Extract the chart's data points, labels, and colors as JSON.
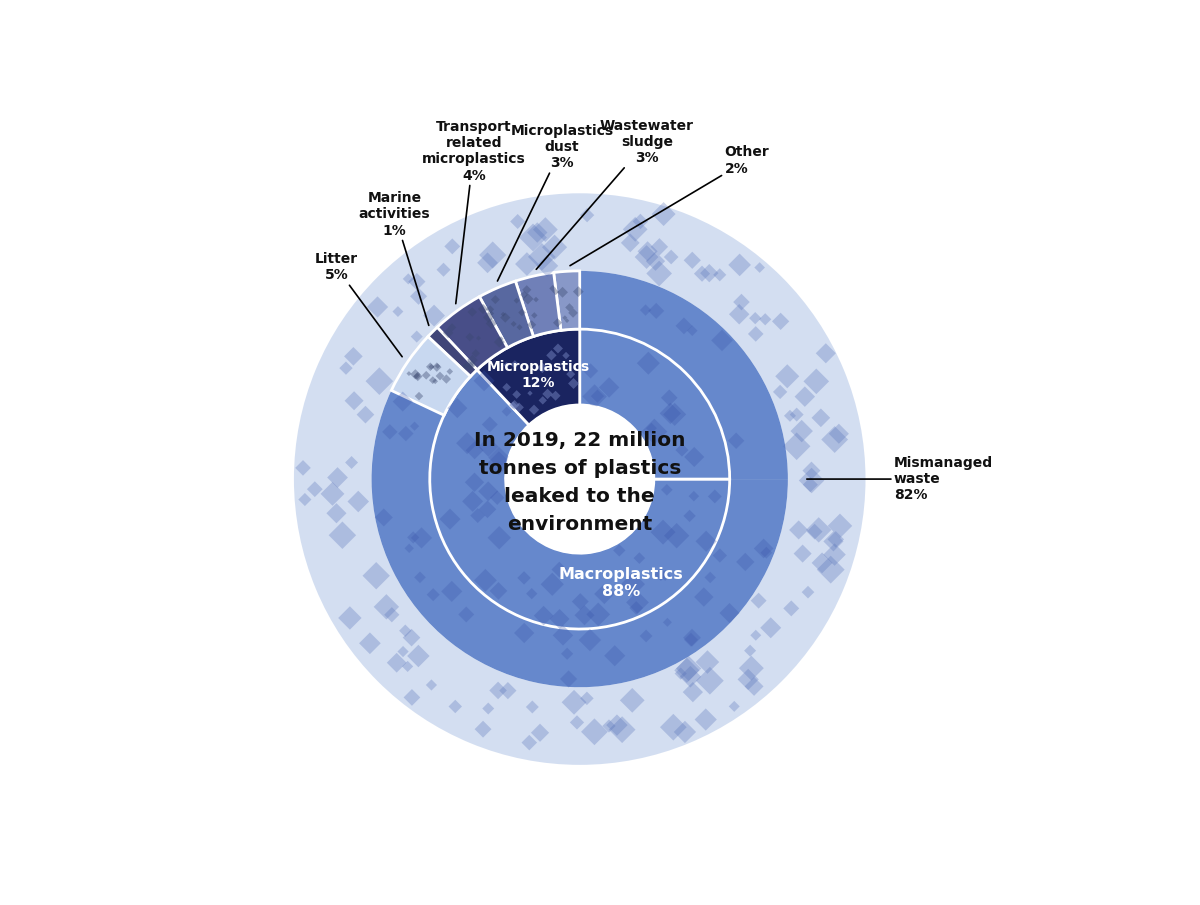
{
  "center_text": "In 2019, 22 million\ntonnes of plastics\nleaked to the\nenvironment",
  "ring_inner_r": 0.42,
  "ring_mid_r": 0.85,
  "ring_outer_r": 1.18,
  "ring_bg_r": 1.62,
  "macro_color": "#6688cc",
  "micro_color": "#1a2460",
  "bg_ring_color": "#b0c4e6",
  "litter_color": "#c8d8f0",
  "outer_seg_colors": [
    "#8898c8",
    "#7080b8",
    "#5868a0",
    "#484e88",
    "#404578"
  ],
  "outer_segments_ordered": [
    {
      "label": "Other",
      "pct": "2%",
      "value": 2
    },
    {
      "label": "Wastewater\nsludge",
      "pct": "3%",
      "value": 3
    },
    {
      "label": "Microplastics\ndust",
      "pct": "3%",
      "value": 3
    },
    {
      "label": "Transport\nrelated\nmicroplastics",
      "pct": "4%",
      "value": 4
    },
    {
      "label": "Marine\nactivities",
      "pct": "1%",
      "value": 1
    },
    {
      "label": "Litter",
      "pct": "5%",
      "value": 5
    }
  ],
  "macro_label": "Macroplastics",
  "macro_pct": "88%",
  "micro_label": "Microplastics",
  "micro_pct": "12%",
  "mismanaged_label": "Mismanaged\nwaste",
  "mismanaged_pct": "82%"
}
